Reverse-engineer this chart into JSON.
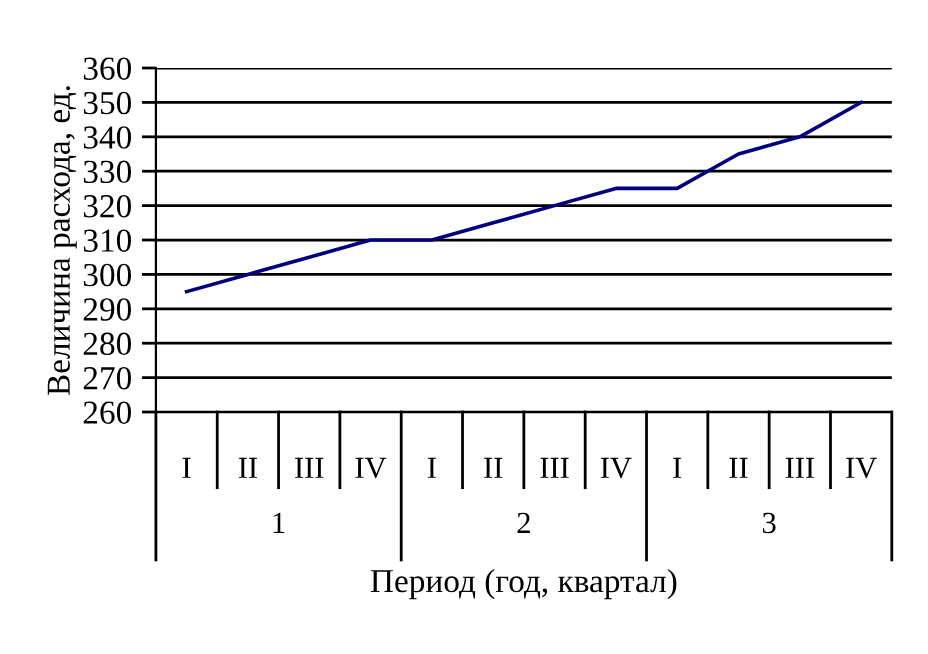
{
  "chart_data": {
    "type": "line",
    "categories": [
      "I",
      "II",
      "III",
      "IV",
      "I",
      "II",
      "III",
      "IV",
      "I",
      "II",
      "III",
      "IV"
    ],
    "series": [
      {
        "color": "#000080",
        "values": [
          295,
          300,
          305,
          310,
          310,
          315,
          320,
          325,
          325,
          335,
          340,
          350
        ]
      }
    ],
    "annotations": [
      "1",
      "2",
      "3"
    ],
    "xlabel": "Период (год, квартал)",
    "ylabel": "Величина расхода, ед.",
    "ylim": [
      260,
      360
    ],
    "yticks": [
      260,
      270,
      280,
      290,
      300,
      310,
      320,
      330,
      340,
      350,
      360
    ],
    "grid": "y",
    "marker": "none",
    "line_style": "solid",
    "legend": false
  }
}
